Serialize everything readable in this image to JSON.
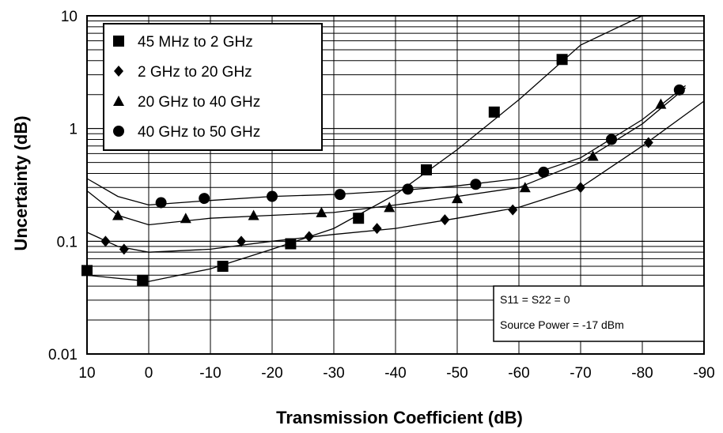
{
  "chart_data": {
    "type": "line",
    "xlabel": "Transmission Coefficient (dB)",
    "ylabel": "Uncertainty (dB)",
    "x_ticks": [
      "10",
      "0",
      "-10",
      "-20",
      "-30",
      "-40",
      "-50",
      "-60",
      "-70",
      "-80",
      "-90"
    ],
    "y_ticks": [
      "0.01",
      "0.1",
      "1",
      "10"
    ],
    "xlim": [
      10,
      -90
    ],
    "ylim": [
      0.01,
      10
    ],
    "y_scale": "log",
    "grid": true,
    "legend_position": "top-left",
    "annotation": [
      "S11 = S22 = 0",
      "Source Power = -17 dBm"
    ],
    "series": [
      {
        "name": "45 MHz to 2 GHz",
        "marker": "square",
        "points": [
          [
            10,
            0.055
          ],
          [
            1,
            0.045
          ],
          [
            -12,
            0.06
          ],
          [
            -23,
            0.095
          ],
          [
            -34,
            0.16
          ],
          [
            -45,
            0.43
          ],
          [
            -56,
            1.4
          ],
          [
            -67,
            4.1
          ]
        ],
        "curve": [
          [
            10,
            0.05
          ],
          [
            0,
            0.044
          ],
          [
            -10,
            0.057
          ],
          [
            -20,
            0.085
          ],
          [
            -30,
            0.13
          ],
          [
            -40,
            0.26
          ],
          [
            -50,
            0.65
          ],
          [
            -60,
            1.8
          ],
          [
            -70,
            5.5
          ],
          [
            -80,
            14
          ]
        ]
      },
      {
        "name": "2 GHz to 20 GHz",
        "marker": "diamond",
        "points": [
          [
            7,
            0.1
          ],
          [
            4,
            0.085
          ],
          [
            -15,
            0.1
          ],
          [
            -26,
            0.11
          ],
          [
            -37,
            0.13
          ],
          [
            -48,
            0.155
          ],
          [
            -59,
            0.19
          ],
          [
            -70,
            0.3
          ],
          [
            -81,
            0.75
          ]
        ],
        "curve": [
          [
            10,
            0.12
          ],
          [
            5,
            0.09
          ],
          [
            0,
            0.08
          ],
          [
            -10,
            0.085
          ],
          [
            -20,
            0.1
          ],
          [
            -30,
            0.115
          ],
          [
            -40,
            0.13
          ],
          [
            -50,
            0.16
          ],
          [
            -60,
            0.2
          ],
          [
            -70,
            0.3
          ],
          [
            -80,
            0.7
          ],
          [
            -90,
            1.75
          ]
        ]
      },
      {
        "name": "20 GHz to 40 GHz",
        "marker": "triangle",
        "points": [
          [
            5,
            0.17
          ],
          [
            -6,
            0.16
          ],
          [
            -17,
            0.17
          ],
          [
            -28,
            0.18
          ],
          [
            -39,
            0.2
          ],
          [
            -50,
            0.24
          ],
          [
            -61,
            0.3
          ],
          [
            -72,
            0.57
          ],
          [
            -83,
            1.65
          ]
        ],
        "curve": [
          [
            10,
            0.28
          ],
          [
            5,
            0.17
          ],
          [
            0,
            0.14
          ],
          [
            -10,
            0.16
          ],
          [
            -20,
            0.17
          ],
          [
            -30,
            0.18
          ],
          [
            -40,
            0.21
          ],
          [
            -50,
            0.25
          ],
          [
            -60,
            0.3
          ],
          [
            -70,
            0.5
          ],
          [
            -80,
            1.1
          ],
          [
            -87,
            2.3
          ]
        ]
      },
      {
        "name": "40 GHz to 50 GHz",
        "marker": "circle",
        "points": [
          [
            -2,
            0.22
          ],
          [
            -9,
            0.24
          ],
          [
            -20,
            0.25
          ],
          [
            -31,
            0.26
          ],
          [
            -42,
            0.29
          ],
          [
            -53,
            0.32
          ],
          [
            -64,
            0.41
          ],
          [
            -75,
            0.8
          ],
          [
            -86,
            2.2
          ]
        ],
        "curve": [
          [
            10,
            0.36
          ],
          [
            5,
            0.25
          ],
          [
            0,
            0.21
          ],
          [
            -10,
            0.23
          ],
          [
            -20,
            0.25
          ],
          [
            -30,
            0.26
          ],
          [
            -40,
            0.28
          ],
          [
            -50,
            0.31
          ],
          [
            -60,
            0.36
          ],
          [
            -70,
            0.55
          ],
          [
            -80,
            1.2
          ],
          [
            -87,
            2.4
          ]
        ]
      }
    ]
  }
}
